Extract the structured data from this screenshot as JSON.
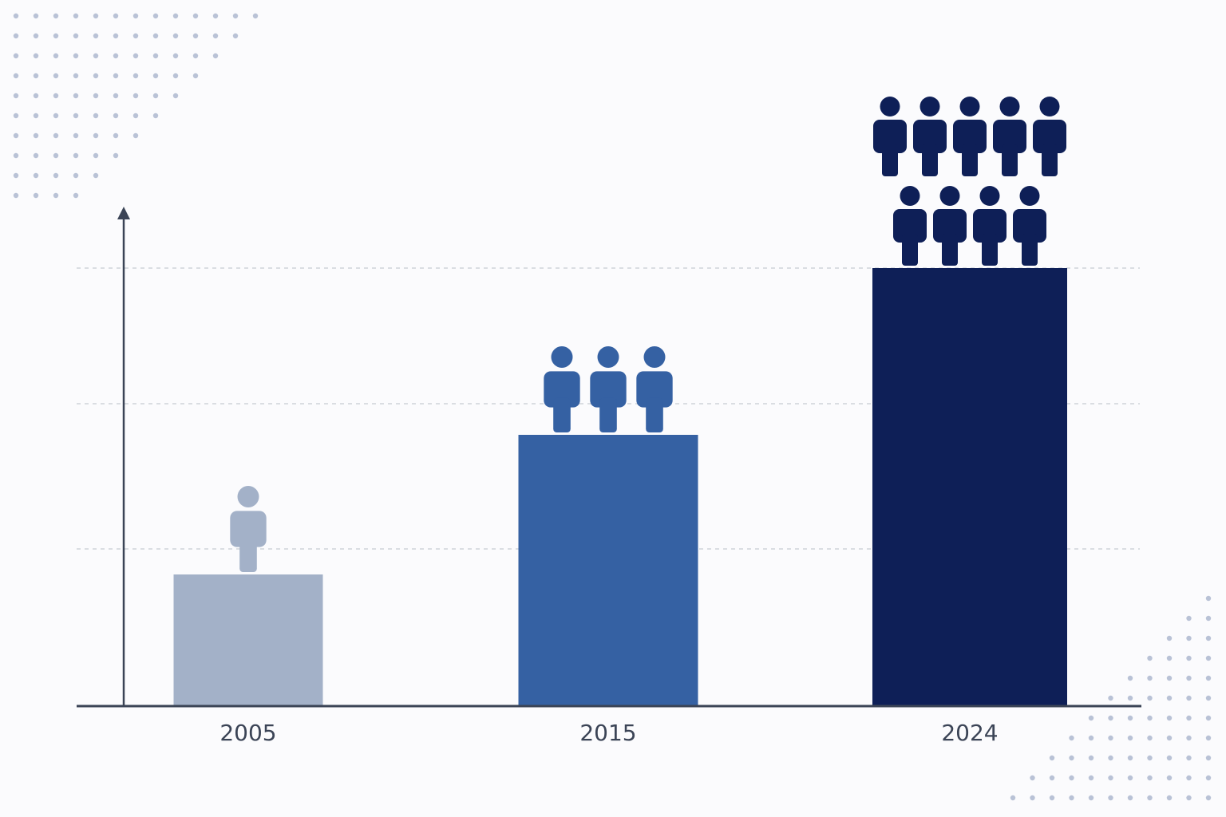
{
  "chart_data": {
    "type": "bar",
    "categories": [
      "2005",
      "2015",
      "2024"
    ],
    "values": [
      165,
      340,
      549
    ],
    "icon_counts": [
      1,
      3,
      9
    ],
    "colors": [
      "#a3b1c8",
      "#3561a3",
      "#0e1f57"
    ],
    "ylim": [
      0,
      625
    ]
  }
}
